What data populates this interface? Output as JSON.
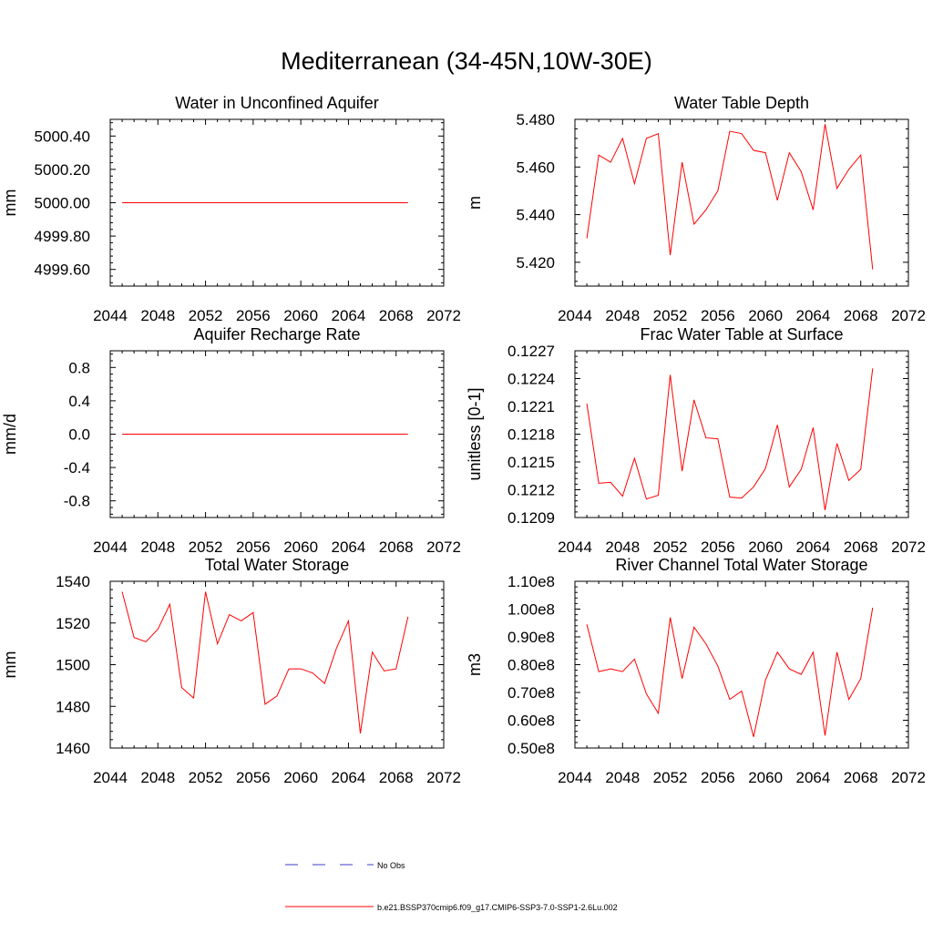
{
  "title": "Mediterranean (34-45N,10W-30E)",
  "legend": {
    "entries": [
      {
        "label": "No Obs",
        "color": "#3c3cc8",
        "dash": true
      },
      {
        "label": "b.e21.BSSP370cmip6.f09_g17.CMIP6-SSP3-7.0-SSP1-2.6Lu.002",
        "color": "#ff0000",
        "dash": false
      }
    ]
  },
  "line_color": "#ff0000",
  "chart_data": [
    {
      "type": "line",
      "title": "Water in Unconfined Aquifer",
      "ylabel": "mm",
      "xlim": [
        2044,
        2072
      ],
      "ylim": [
        4999.5,
        5000.5
      ],
      "xticks": [
        2044,
        2048,
        2052,
        2056,
        2060,
        2064,
        2068,
        2072
      ],
      "yticks": [
        4999.6,
        4999.8,
        5000.0,
        5000.2,
        5000.4
      ],
      "ytick_labels": [
        "4999.60",
        "4999.80",
        "5000.00",
        "5000.20",
        "5000.40"
      ],
      "series": [
        {
          "x": [
            2045,
            2069
          ],
          "y": [
            5000.0,
            5000.0
          ]
        }
      ]
    },
    {
      "type": "line",
      "title": "Water Table Depth",
      "ylabel": "m",
      "xlim": [
        2044,
        2072
      ],
      "ylim": [
        5.41,
        5.48
      ],
      "xticks": [
        2044,
        2048,
        2052,
        2056,
        2060,
        2064,
        2068,
        2072
      ],
      "yticks": [
        5.42,
        5.44,
        5.46,
        5.48
      ],
      "ytick_labels": [
        "5.420",
        "5.440",
        "5.460",
        "5.480"
      ],
      "series": [
        {
          "x": [
            2045,
            2046,
            2047,
            2048,
            2049,
            2050,
            2051,
            2052,
            2053,
            2054,
            2055,
            2056,
            2057,
            2058,
            2059,
            2060,
            2061,
            2062,
            2063,
            2064,
            2065,
            2066,
            2067,
            2068,
            2069
          ],
          "y": [
            5.43,
            5.465,
            5.462,
            5.472,
            5.453,
            5.472,
            5.474,
            5.423,
            5.462,
            5.436,
            5.442,
            5.45,
            5.475,
            5.474,
            5.467,
            5.466,
            5.446,
            5.466,
            5.458,
            5.442,
            5.478,
            5.451,
            5.459,
            5.465,
            5.417
          ]
        }
      ]
    },
    {
      "type": "line",
      "title": "Aquifer Recharge Rate",
      "ylabel": "mm/d",
      "xlim": [
        2044,
        2072
      ],
      "ylim": [
        -1.0,
        1.0
      ],
      "xticks": [
        2044,
        2048,
        2052,
        2056,
        2060,
        2064,
        2068,
        2072
      ],
      "yticks": [
        -0.8,
        -0.4,
        0.0,
        0.4,
        0.8
      ],
      "ytick_labels": [
        "-0.8",
        "-0.4",
        "0.0",
        "0.4",
        "0.8"
      ],
      "series": [
        {
          "x": [
            2045,
            2069
          ],
          "y": [
            0.0,
            0.0
          ]
        }
      ]
    },
    {
      "type": "line",
      "title": "Frac Water Table at Surface",
      "ylabel": "unitless [0-1]",
      "xlim": [
        2044,
        2072
      ],
      "ylim": [
        0.1209,
        0.1227
      ],
      "xticks": [
        2044,
        2048,
        2052,
        2056,
        2060,
        2064,
        2068,
        2072
      ],
      "yticks": [
        0.1209,
        0.1212,
        0.1215,
        0.1218,
        0.1221,
        0.1224,
        0.1227
      ],
      "ytick_labels": [
        "0.1209",
        "0.1212",
        "0.1215",
        "0.1218",
        "0.1221",
        "0.1224",
        "0.1227"
      ],
      "series": [
        {
          "x": [
            2045,
            2046,
            2047,
            2048,
            2049,
            2050,
            2051,
            2052,
            2053,
            2054,
            2055,
            2056,
            2057,
            2058,
            2059,
            2060,
            2061,
            2062,
            2063,
            2064,
            2065,
            2066,
            2067,
            2068,
            2069
          ],
          "y": [
            0.12213,
            0.12127,
            0.12128,
            0.12113,
            0.12154,
            0.1211,
            0.12114,
            0.12244,
            0.1214,
            0.12217,
            0.12176,
            0.12175,
            0.12112,
            0.12111,
            0.12123,
            0.12143,
            0.1219,
            0.12123,
            0.12142,
            0.12187,
            0.12098,
            0.1217,
            0.1213,
            0.12142,
            0.12251
          ]
        }
      ]
    },
    {
      "type": "line",
      "title": "Total Water Storage",
      "ylabel": "mm",
      "xlim": [
        2044,
        2072
      ],
      "ylim": [
        1460,
        1540
      ],
      "xticks": [
        2044,
        2048,
        2052,
        2056,
        2060,
        2064,
        2068,
        2072
      ],
      "yticks": [
        1460,
        1480,
        1500,
        1520,
        1540
      ],
      "ytick_labels": [
        "1460",
        "1480",
        "1500",
        "1520",
        "1540"
      ],
      "series": [
        {
          "x": [
            2045,
            2046,
            2047,
            2048,
            2049,
            2050,
            2051,
            2052,
            2053,
            2054,
            2055,
            2056,
            2057,
            2058,
            2059,
            2060,
            2061,
            2062,
            2063,
            2064,
            2065,
            2066,
            2067,
            2068,
            2069
          ],
          "y": [
            1535,
            1513,
            1511,
            1517,
            1529,
            1489,
            1484,
            1535,
            1510,
            1524,
            1521,
            1525,
            1481,
            1485,
            1498,
            1498,
            1496,
            1491,
            1508,
            1521,
            1467,
            1506,
            1497,
            1498,
            1523
          ]
        }
      ]
    },
    {
      "type": "line",
      "title": "River Channel Total Water Storage",
      "ylabel": "m3",
      "xlim": [
        2044,
        2072
      ],
      "ylim": [
        0.5,
        1.1
      ],
      "y_unit_note": "values in units of 1e8 m3",
      "xticks": [
        2044,
        2048,
        2052,
        2056,
        2060,
        2064,
        2068,
        2072
      ],
      "yticks": [
        0.5,
        0.6,
        0.7,
        0.8,
        0.9,
        1.0,
        1.1
      ],
      "ytick_labels": [
        "0.50e8",
        "0.60e8",
        "0.70e8",
        "0.80e8",
        "0.90e8",
        "1.00e8",
        "1.10e8"
      ],
      "series": [
        {
          "x": [
            2045,
            2046,
            2047,
            2048,
            2049,
            2050,
            2051,
            2052,
            2053,
            2054,
            2055,
            2056,
            2057,
            2058,
            2059,
            2060,
            2061,
            2062,
            2063,
            2064,
            2065,
            2066,
            2067,
            2068,
            2069
          ],
          "y": [
            0.945,
            0.775,
            0.785,
            0.775,
            0.82,
            0.695,
            0.625,
            0.97,
            0.75,
            0.935,
            0.875,
            0.795,
            0.675,
            0.705,
            0.54,
            0.745,
            0.845,
            0.785,
            0.765,
            0.845,
            0.545,
            0.845,
            0.675,
            0.75,
            1.005
          ]
        }
      ]
    }
  ]
}
